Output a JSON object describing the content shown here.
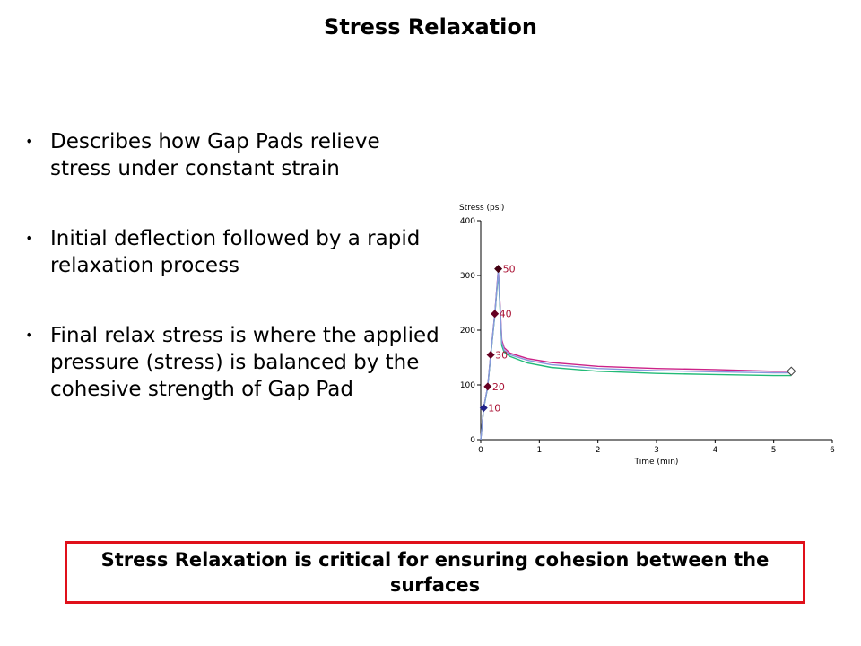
{
  "slide": {
    "title": "Stress Relaxation",
    "bullets": [
      "Describes how Gap Pads relieve stress under constant strain",
      "Initial deflection followed by a rapid relaxation process",
      "Final relax stress is where the applied pressure (stress) is balanced by the cohesive strength of Gap Pad"
    ],
    "callout": "Stress Relaxation is critical for ensuring cohesion between the surfaces",
    "callout_border_color": "#e0101a"
  },
  "chart_data": {
    "type": "line",
    "title": "",
    "xlabel": "Time (min)",
    "ylabel": "Stress (psi)",
    "xlim": [
      0,
      6
    ],
    "ylim": [
      0,
      400
    ],
    "xticks": [
      0,
      1,
      2,
      3,
      4,
      5,
      6
    ],
    "yticks": [
      0,
      100,
      200,
      300,
      400
    ],
    "grid": false,
    "series": [
      {
        "color": "#cc2288",
        "x": [
          0,
          0.05,
          0.12,
          0.17,
          0.24,
          0.3,
          0.36,
          0.4,
          0.5,
          0.8,
          1.2,
          2,
          3,
          4,
          5,
          5.3
        ],
        "y": [
          0,
          58,
          97,
          155,
          230,
          312,
          182,
          168,
          158,
          148,
          141,
          134,
          130,
          128,
          125,
          125
        ]
      },
      {
        "color": "#22bb77",
        "x": [
          0,
          0.05,
          0.12,
          0.17,
          0.24,
          0.3,
          0.36,
          0.4,
          0.5,
          0.8,
          1.2,
          2,
          3,
          4,
          5,
          5.3
        ],
        "y": [
          0,
          57,
          96,
          153,
          227,
          306,
          172,
          160,
          152,
          140,
          132,
          125,
          121,
          119,
          117,
          117
        ]
      },
      {
        "color": "#8899dd",
        "x": [
          0,
          0.05,
          0.12,
          0.17,
          0.24,
          0.3,
          0.36,
          0.4,
          0.5,
          0.8,
          1.2,
          2,
          3,
          4,
          5,
          5.3
        ],
        "y": [
          0,
          58,
          97,
          154,
          229,
          309,
          178,
          164,
          155,
          145,
          137,
          130,
          126,
          124,
          122,
          122
        ]
      }
    ],
    "markers": [
      {
        "x": 0.05,
        "y": 58,
        "label": "10",
        "color": "#222288"
      },
      {
        "x": 0.12,
        "y": 97,
        "label": "20",
        "color": "#660022"
      },
      {
        "x": 0.17,
        "y": 155,
        "label": "30",
        "color": "#660022"
      },
      {
        "x": 0.24,
        "y": 230,
        "label": "40",
        "color": "#660022"
      },
      {
        "x": 0.3,
        "y": 312,
        "label": "50",
        "color": "#440011"
      }
    ],
    "end_marker": {
      "x": 5.3,
      "y": 125
    }
  }
}
